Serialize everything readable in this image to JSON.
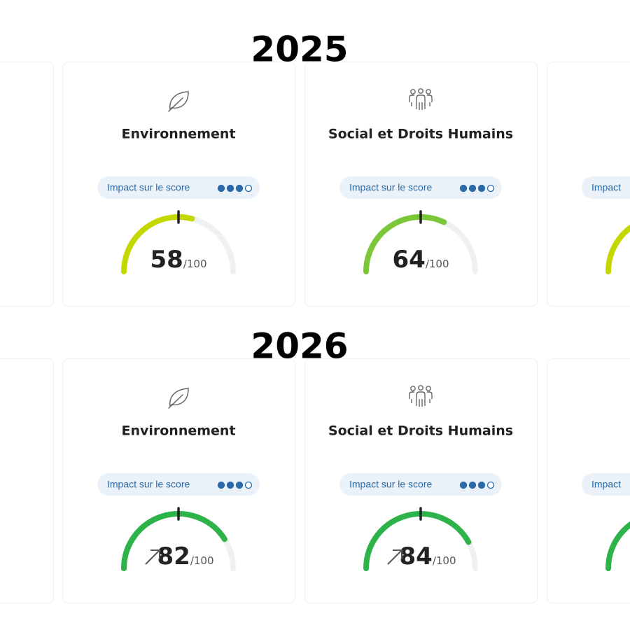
{
  "sections": [
    {
      "title": "2025",
      "cards": [
        {
          "cropped": true
        },
        {
          "icon": "leaf",
          "title": "Environnement",
          "badge": "Impact sur le score",
          "impact_level": 3,
          "impact_max": 4,
          "score": 58,
          "score_suffix": "/100",
          "color": "#c4d800"
        },
        {
          "icon": "people",
          "title": "Social et Droits Humains",
          "badge": "Impact sur le score",
          "impact_level": 3,
          "impact_max": 4,
          "score": 64,
          "score_suffix": "/100",
          "color": "#7cc63a"
        },
        {
          "cropped": true,
          "badge": "Impact",
          "color": "#c4d800"
        }
      ]
    },
    {
      "title": "2026",
      "cards": [
        {
          "cropped": true
        },
        {
          "icon": "leaf",
          "title": "Environnement",
          "badge": "Impact sur le score",
          "impact_level": 3,
          "impact_max": 4,
          "score": 82,
          "score_suffix": "/100",
          "color": "#2db34a",
          "trend": "up"
        },
        {
          "icon": "people",
          "title": "Social et Droits Humains",
          "badge": "Impact sur le score",
          "impact_level": 3,
          "impact_max": 4,
          "score": 84,
          "score_suffix": "/100",
          "color": "#2db34a",
          "trend": "up"
        },
        {
          "cropped": true,
          "badge": "Impact",
          "color": "#2db34a"
        }
      ]
    }
  ]
}
